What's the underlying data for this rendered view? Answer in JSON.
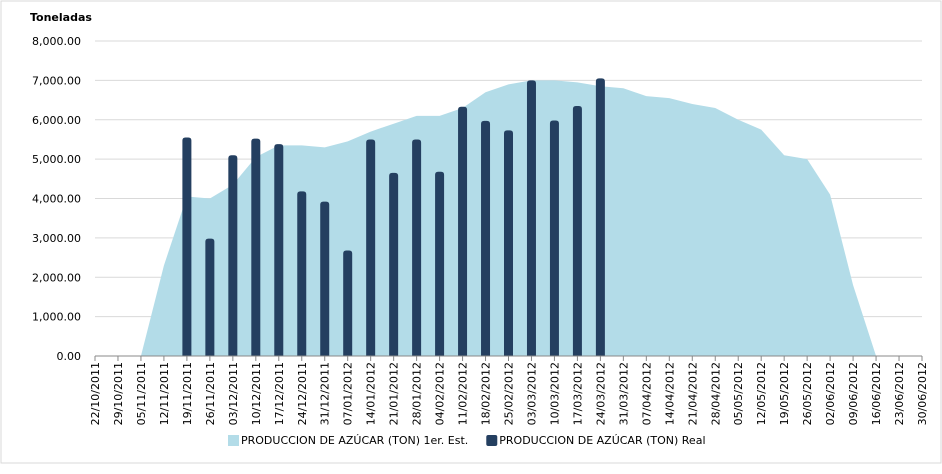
{
  "chart_data": {
    "type": "bar-area",
    "y_axis_title": "Toneladas",
    "categories": [
      "22/10/2011",
      "29/10/2011",
      "05/11/2011",
      "12/11/2011",
      "19/11/2011",
      "26/11/2011",
      "03/12/2011",
      "10/12/2011",
      "17/12/2011",
      "24/12/2011",
      "31/12/2011",
      "07/01/2012",
      "14/01/2012",
      "21/01/2012",
      "28/01/2012",
      "04/02/2012",
      "11/02/2012",
      "18/02/2012",
      "25/02/2012",
      "03/03/2012",
      "10/03/2012",
      "17/03/2012",
      "24/03/2012",
      "31/03/2012",
      "07/04/2012",
      "14/04/2012",
      "21/04/2012",
      "28/04/2012",
      "05/05/2012",
      "12/05/2012",
      "19/05/2012",
      "26/05/2012",
      "02/06/2012",
      "09/06/2012",
      "16/06/2012",
      "23/06/2012",
      "30/06/2012"
    ],
    "series": [
      {
        "name": "PRODUCCION DE AZÚCAR (TON) 1er. Est.",
        "type": "area",
        "color": "#b3dce8",
        "values": [
          null,
          null,
          0,
          2300,
          4050,
          4000,
          4350,
          5050,
          5350,
          5350,
          5300,
          5450,
          5700,
          5900,
          6100,
          6100,
          6300,
          6700,
          6900,
          7000,
          7000,
          6950,
          6850,
          6800,
          6600,
          6550,
          6400,
          6300,
          6000,
          5750,
          5100,
          5000,
          4100,
          1800,
          0,
          null,
          null
        ]
      },
      {
        "name": "PRODUCCION DE AZÚCAR (TON) Real",
        "type": "bar",
        "color": "#243f60",
        "values": [
          null,
          null,
          null,
          null,
          5550,
          2980,
          5100,
          5520,
          5380,
          4180,
          3920,
          2680,
          5500,
          4650,
          5500,
          4680,
          6330,
          5970,
          5730,
          7000,
          5980,
          6350,
          7050,
          null,
          null,
          null,
          null,
          null,
          null,
          null,
          null,
          null,
          null,
          null,
          null,
          null,
          null
        ]
      }
    ],
    "ylim": [
      0,
      8000
    ],
    "yticks": [
      {
        "value": 0,
        "label": "0.00"
      },
      {
        "value": 1000,
        "label": "1,000.00"
      },
      {
        "value": 2000,
        "label": "2,000.00"
      },
      {
        "value": 3000,
        "label": "3,000.00"
      },
      {
        "value": 4000,
        "label": "4,000.00"
      },
      {
        "value": 5000,
        "label": "5,000.00"
      },
      {
        "value": 6000,
        "label": "6,000.00"
      },
      {
        "value": 7000,
        "label": "7,000.00"
      },
      {
        "value": 8000,
        "label": "8,000.00"
      }
    ],
    "grid": true,
    "legend": "bottom"
  }
}
